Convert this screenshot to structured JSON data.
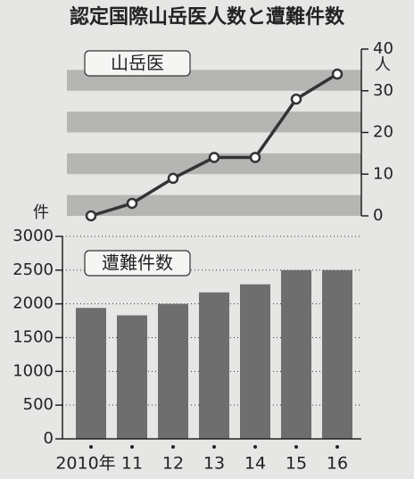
{
  "title": "認定国際山岳医人数と遭難件数",
  "chart_data": [
    {
      "type": "line",
      "y_unit": "人",
      "series": [
        {
          "name": "山岳医",
          "color": "#333333",
          "values": [
            0,
            3,
            9,
            14,
            14,
            28,
            34
          ]
        }
      ],
      "ylim": [
        0,
        40
      ],
      "yticks": [
        0,
        10,
        20,
        30,
        40
      ],
      "grid": "bands",
      "y_axis": "right"
    },
    {
      "type": "bar",
      "y_unit": "件",
      "categories": [
        "2010年",
        "11",
        "12",
        "13",
        "14",
        "15",
        "16"
      ],
      "series": [
        {
          "name": "遭難件数",
          "color": "#6e6e6e",
          "values": [
            1940,
            1830,
            2000,
            2170,
            2290,
            2500,
            2500
          ]
        }
      ],
      "ylim": [
        0,
        3000
      ],
      "yticks": [
        0,
        500,
        1000,
        1500,
        2000,
        2500,
        3000
      ],
      "grid": "dotted",
      "y_axis": "left"
    }
  ]
}
